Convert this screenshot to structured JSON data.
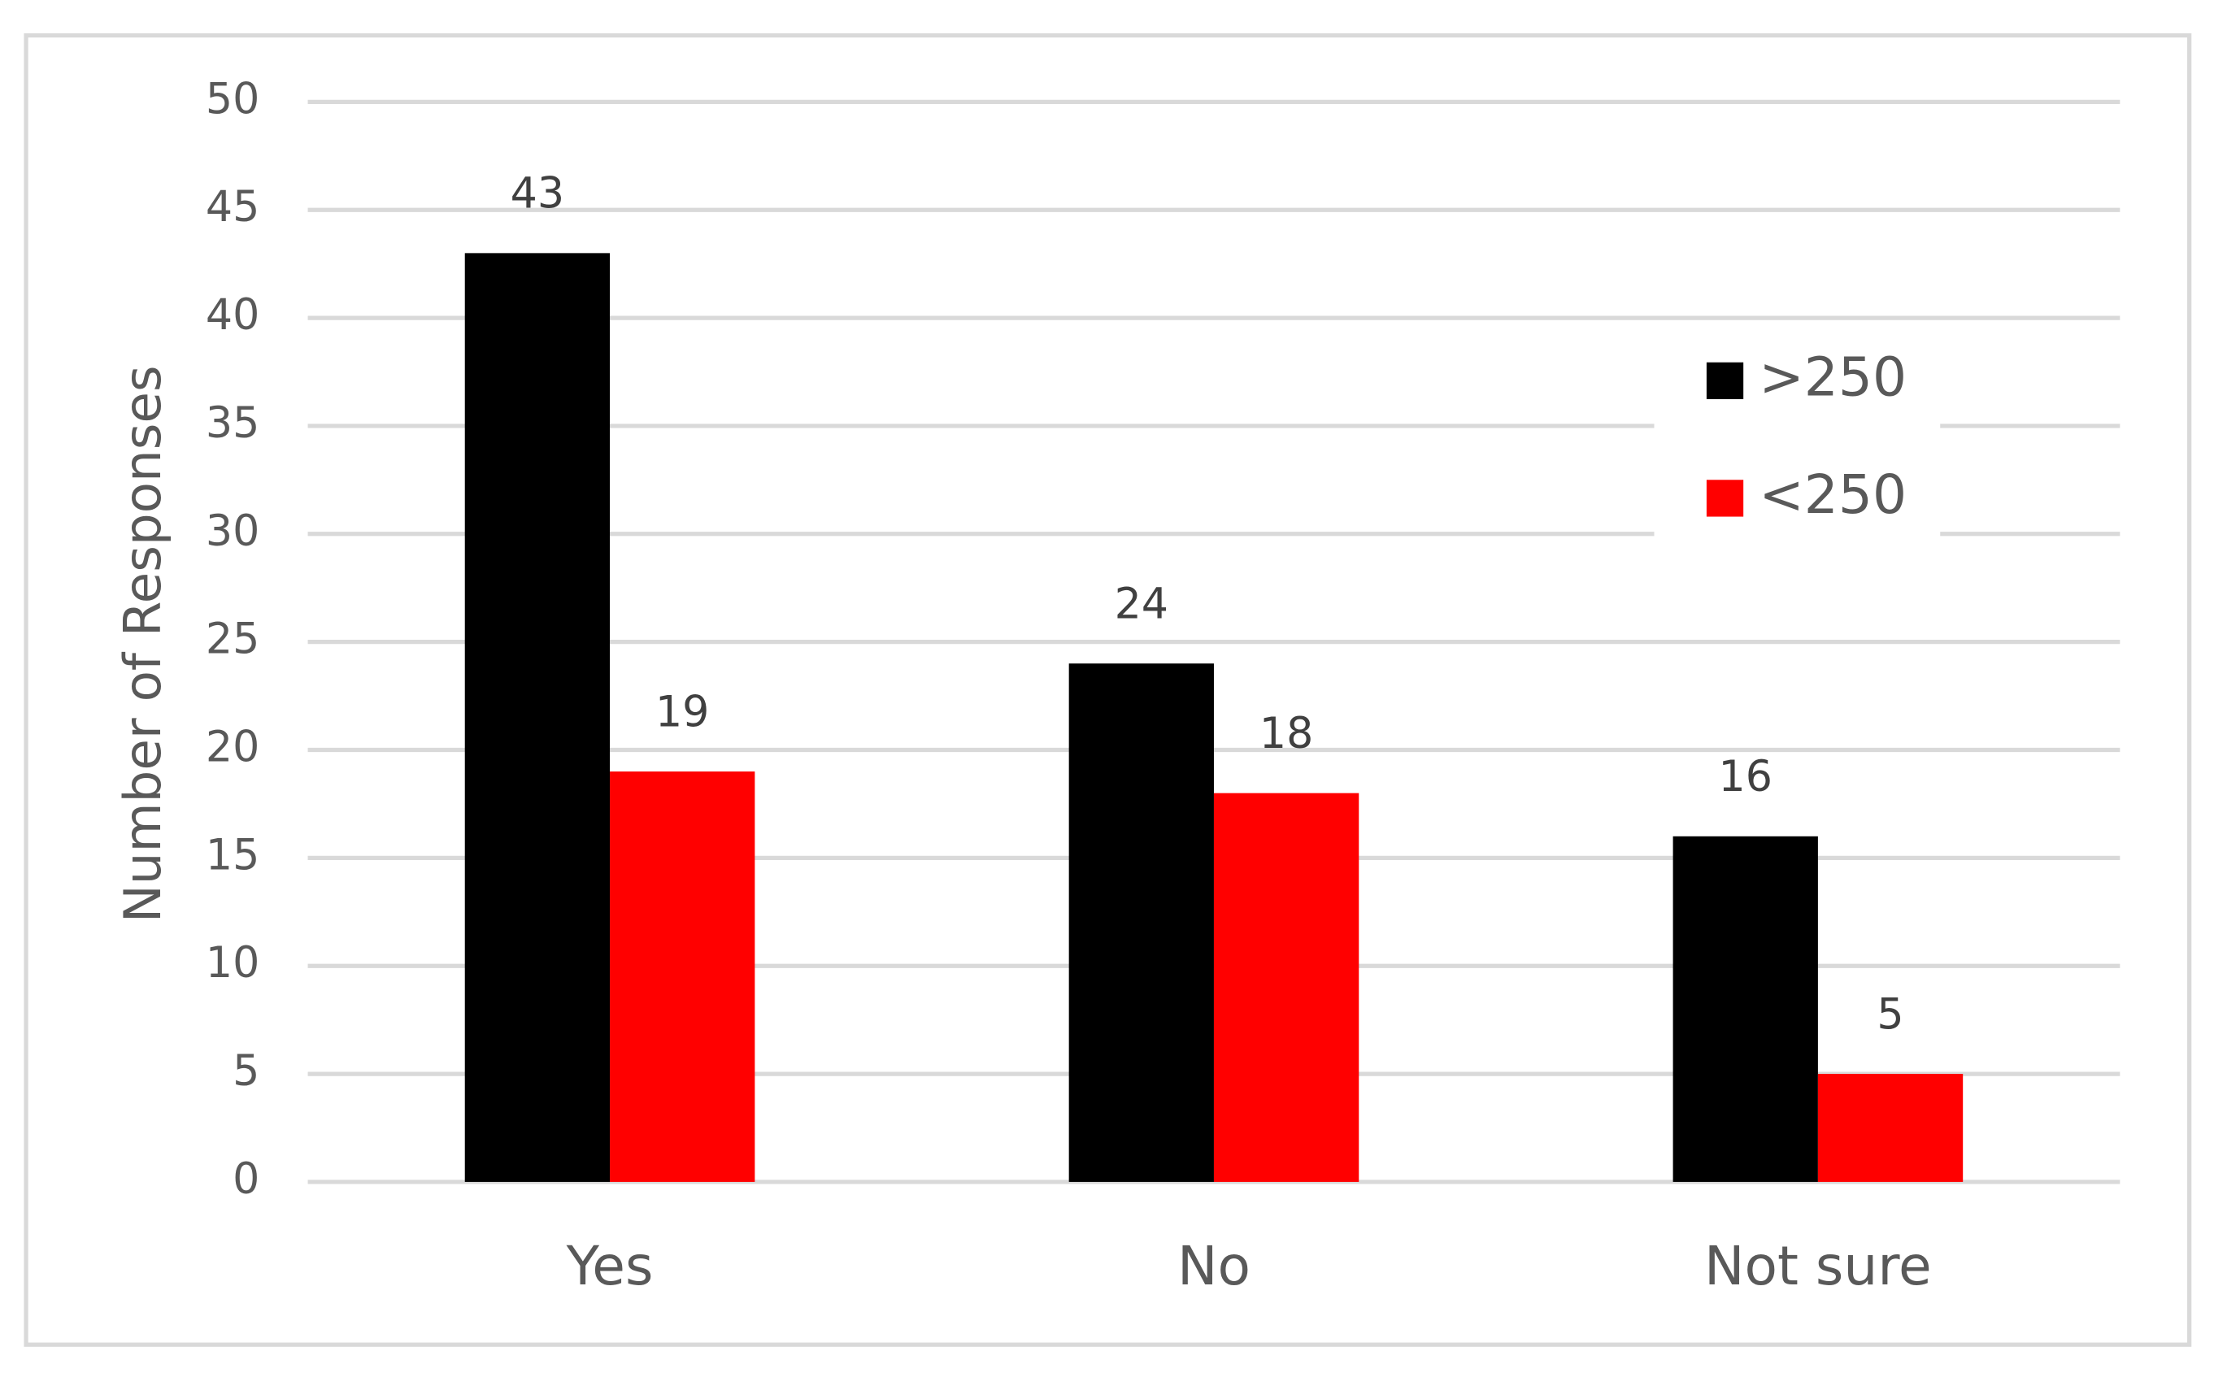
{
  "chart_data": {
    "type": "bar",
    "y_label": "Number of Responses",
    "categories": [
      "Yes",
      "No",
      "Not sure"
    ],
    "series": [
      {
        "name": ">250",
        "color": "#000000",
        "values": [
          43,
          24,
          16
        ]
      },
      {
        "name": "<250",
        "color": "#ff0000",
        "values": [
          19,
          18,
          5
        ]
      }
    ],
    "ylim": [
      0,
      50
    ],
    "yticks": [
      0,
      5,
      10,
      15,
      20,
      25,
      30,
      35,
      40,
      45,
      50
    ],
    "grid": true,
    "legend": "upper right"
  }
}
